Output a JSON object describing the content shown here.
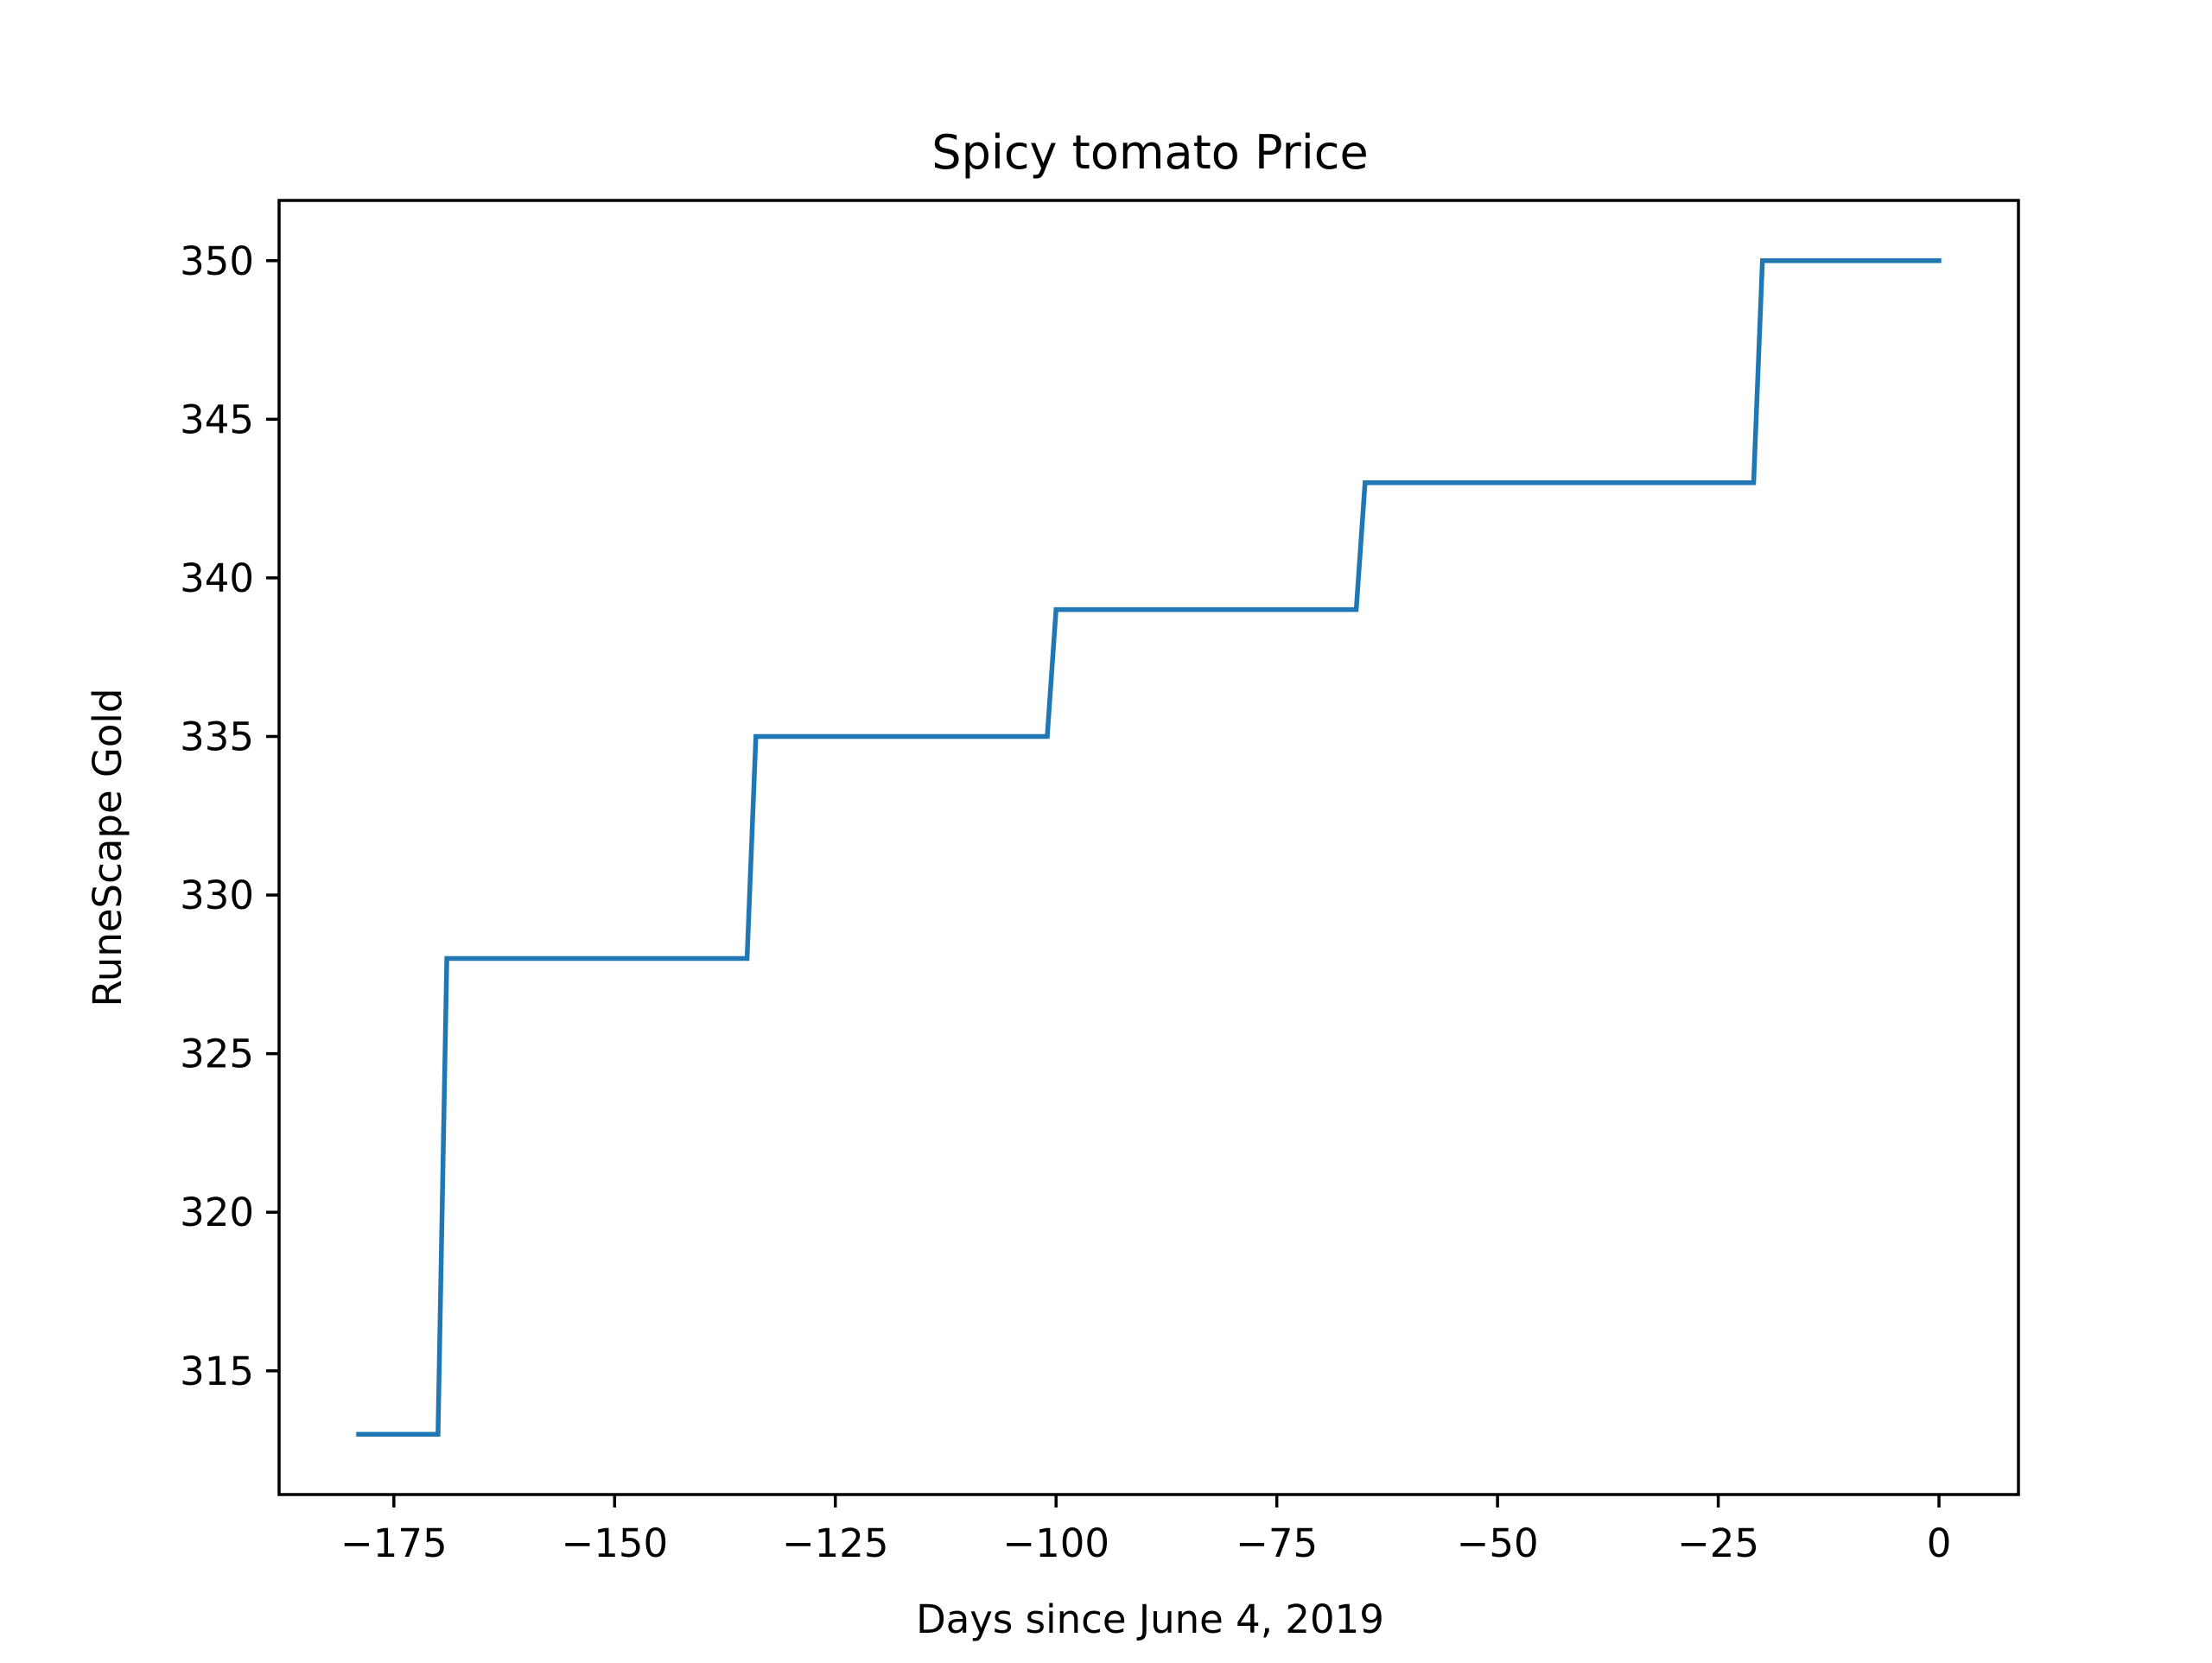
{
  "chart_data": {
    "type": "line",
    "title": "Spicy tomato Price",
    "xlabel": "Days since June 4, 2019",
    "ylabel": "RuneScape Gold",
    "xlim": [
      -188,
      9
    ],
    "ylim": [
      311.1,
      351.9
    ],
    "grid": false,
    "legend": "none",
    "x_ticks": [
      -175,
      -150,
      -125,
      -100,
      -75,
      -50,
      -25,
      0
    ],
    "x_tick_labels": [
      "−175",
      "−150",
      "−125",
      "−100",
      "−75",
      "−50",
      "−25",
      "0"
    ],
    "y_ticks": [
      315,
      320,
      325,
      330,
      335,
      340,
      345,
      350
    ],
    "y_tick_labels": [
      "315",
      "320",
      "325",
      "330",
      "335",
      "340",
      "345",
      "350"
    ],
    "series": [
      {
        "color": "#1f77b4",
        "points": [
          [
            -179,
            313
          ],
          [
            -170,
            313
          ],
          [
            -169,
            328
          ],
          [
            -135,
            328
          ],
          [
            -134,
            335
          ],
          [
            -101,
            335
          ],
          [
            -100,
            339
          ],
          [
            -66,
            339
          ],
          [
            -65,
            343
          ],
          [
            -21,
            343
          ],
          [
            -20,
            350
          ],
          [
            0,
            350
          ]
        ]
      }
    ]
  }
}
